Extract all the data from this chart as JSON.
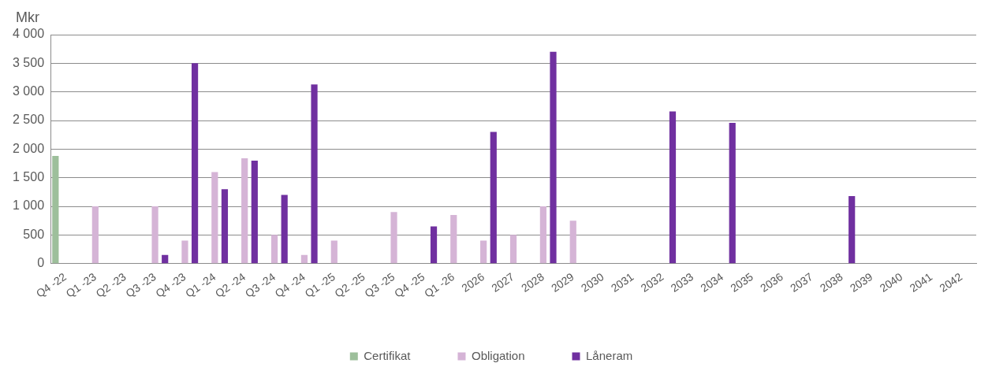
{
  "chart_data": {
    "type": "bar",
    "ylabel": "Mkr",
    "categories": [
      "Q4 -22",
      "Q1 -23",
      "Q2 -23",
      "Q3 -23",
      "Q4 -23",
      "Q1 -24",
      "Q2 -24",
      "Q3 -24",
      "Q4 -24",
      "Q1 -25",
      "Q2 -25",
      "Q3 -25",
      "Q4 -25",
      "Q1 -26",
      "2026",
      "2027",
      "2028",
      "2029",
      "2030",
      "2031",
      "2032",
      "2033",
      "2034",
      "2035",
      "2036",
      "2037",
      "2038",
      "2039",
      "2040",
      "2041",
      "2042"
    ],
    "series": [
      {
        "name": "Certifikat",
        "color": "#9dbf9b",
        "values": [
          1880,
          null,
          null,
          null,
          null,
          null,
          null,
          null,
          null,
          null,
          null,
          null,
          null,
          null,
          null,
          null,
          null,
          null,
          null,
          null,
          null,
          null,
          null,
          null,
          null,
          null,
          null,
          null,
          null,
          null,
          null
        ]
      },
      {
        "name": "Obligation",
        "color": "#d5b4d6",
        "values": [
          null,
          1000,
          null,
          1000,
          400,
          1600,
          1840,
          500,
          150,
          400,
          null,
          900,
          null,
          850,
          400,
          500,
          1000,
          750,
          null,
          null,
          null,
          null,
          null,
          null,
          null,
          null,
          null,
          null,
          null,
          null,
          null
        ]
      },
      {
        "name": "Låneram",
        "color": "#7030a0",
        "values": [
          null,
          null,
          null,
          150,
          3500,
          1300,
          1800,
          1200,
          3130,
          null,
          null,
          null,
          650,
          null,
          2300,
          null,
          3700,
          null,
          null,
          null,
          2660,
          null,
          2460,
          null,
          null,
          null,
          1180,
          null,
          null,
          null,
          null
        ]
      }
    ],
    "ylim": [
      0,
      4000
    ],
    "yticks": [
      0,
      {
        "value": 500,
        "label": "500"
      },
      {
        "value": 1000,
        "label": "1 000"
      },
      {
        "value": 1500,
        "label": "1 500"
      },
      {
        "value": 2000,
        "label": "2 000"
      },
      {
        "value": 2500,
        "label": "2 500"
      },
      {
        "value": 3000,
        "label": "3 000"
      },
      {
        "value": 3500,
        "label": "3 500"
      },
      {
        "value": 4000,
        "label": "4 000"
      }
    ],
    "grid": "y",
    "legend": "bottom"
  }
}
